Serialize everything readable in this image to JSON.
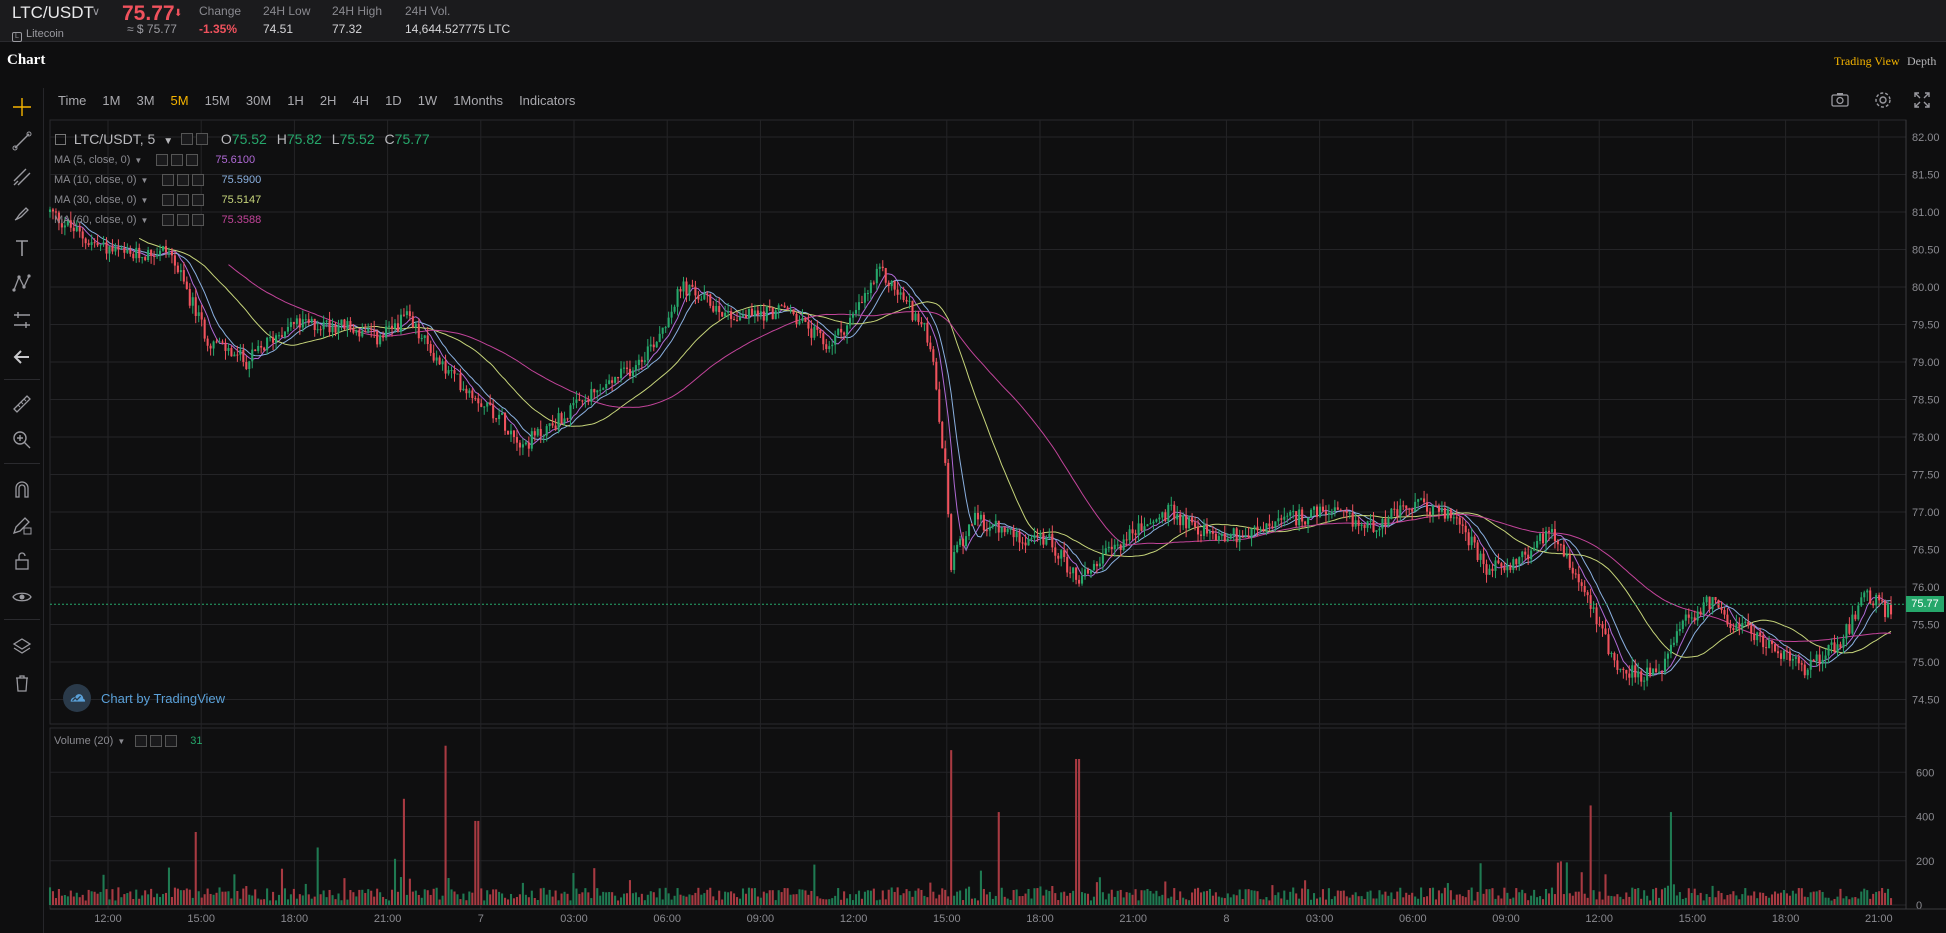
{
  "ticker": {
    "pair": "LTC/USDT",
    "coin_name": "Litecoin",
    "last_price": "75.77",
    "last_price_usd": "≈ $ 75.77",
    "stats": [
      {
        "label": "Change",
        "value": "-1.35%"
      },
      {
        "label": "24H Low",
        "value": "74.51"
      },
      {
        "label": "24H High",
        "value": "77.32"
      },
      {
        "label": "24H Vol.",
        "value": "14,644.527775 LTC"
      }
    ]
  },
  "header": {
    "title": "Chart",
    "views": [
      "Trading View",
      "Depth"
    ],
    "active_view": "Trading View"
  },
  "intervals": [
    "Time",
    "1M",
    "3M",
    "5M",
    "15M",
    "30M",
    "1H",
    "2H",
    "4H",
    "1D",
    "1W",
    "1Months",
    "Indicators"
  ],
  "active_interval": "5M",
  "toolbar_right_icons": [
    "camera-icon",
    "gear-icon",
    "fullscreen-icon"
  ],
  "left_tools": [
    "crosshair-icon",
    "trendline-icon",
    "fib-icon",
    "brush-icon",
    "text-icon",
    "pattern-icon",
    "measure-icon",
    "arrow-left-icon",
    "ruler-icon",
    "zoom-in-icon",
    "magnet-icon",
    "pencil-lock-icon",
    "unlock-icon",
    "eye-icon",
    "layers-icon",
    "trash-icon"
  ],
  "legend": {
    "symbol": "LTC/USDT, 5",
    "open": "75.52",
    "high": "75.82",
    "low": "75.52",
    "close": "75.77",
    "o_label": "O",
    "h_label": "H",
    "l_label": "L",
    "c_label": "C"
  },
  "moving_averages": [
    {
      "label": "MA (5, close, 0)",
      "value": "75.6100",
      "color": "#b06ad6"
    },
    {
      "label": "MA (10, close, 0)",
      "value": "75.5900",
      "color": "#8ab0e0"
    },
    {
      "label": "MA (30, close, 0)",
      "value": "75.5147",
      "color": "#c6d47a"
    },
    {
      "label": "MA (60, close, 0)",
      "value": "75.3588",
      "color": "#c2449a"
    }
  ],
  "volume_indicator": {
    "label": "Volume (20)",
    "value": "31"
  },
  "watermark": "Chart by TradingView",
  "colors": {
    "up": "#26a76b",
    "down": "#f0525d",
    "accent": "#f5b400",
    "background": "#0e0e0f",
    "grid": "#242427"
  },
  "chart_data": {
    "type": "candlestick",
    "title": "LTC/USDT, 5",
    "price_axis": {
      "ticks": [
        "82.00",
        "81.50",
        "81.00",
        "80.50",
        "80.00",
        "79.50",
        "79.00",
        "78.50",
        "78.00",
        "77.50",
        "77.00",
        "76.50",
        "76.00",
        "75.50",
        "75.00",
        "74.50"
      ],
      "range": [
        74.2,
        82.2
      ]
    },
    "volume_axis": {
      "ticks": [
        "600",
        "400",
        "200",
        "0"
      ],
      "range": [
        0,
        800
      ]
    },
    "time_axis": {
      "ticks": [
        "12:00",
        "15:00",
        "18:00",
        "21:00",
        "7",
        "03:00",
        "06:00",
        "09:00",
        "12:00",
        "15:00",
        "18:00",
        "21:00",
        "8",
        "03:00",
        "06:00",
        "09:00",
        "12:00",
        "15:00",
        "18:00",
        "21:00"
      ]
    },
    "current_price": "75.77",
    "close_trajectory": [
      [
        0,
        81.0
      ],
      [
        1.5,
        80.6
      ],
      [
        3,
        80.4
      ],
      [
        4.5,
        80.5
      ],
      [
        6,
        79.3
      ],
      [
        7.5,
        79.0
      ],
      [
        9,
        79.5
      ],
      [
        11,
        79.5
      ],
      [
        12.5,
        79.3
      ],
      [
        13.5,
        79.6
      ],
      [
        15,
        78.9
      ],
      [
        17,
        78.3
      ],
      [
        18,
        77.9
      ],
      [
        20,
        78.4
      ],
      [
        22,
        78.9
      ],
      [
        23,
        79.3
      ],
      [
        24,
        80.0
      ],
      [
        26,
        79.6
      ],
      [
        28,
        79.7
      ],
      [
        29.5,
        79.2
      ],
      [
        30.5,
        79.6
      ],
      [
        31.5,
        80.2
      ],
      [
        32.5,
        79.8
      ],
      [
        33.4,
        79.3
      ],
      [
        34,
        77.5
      ],
      [
        34.2,
        76.3
      ],
      [
        35,
        76.9
      ],
      [
        36.5,
        76.7
      ],
      [
        38,
        76.6
      ],
      [
        39,
        76.1
      ],
      [
        41,
        76.7
      ],
      [
        42.5,
        77.0
      ],
      [
        44,
        76.7
      ],
      [
        45.5,
        76.7
      ],
      [
        47,
        76.9
      ],
      [
        48.5,
        77.0
      ],
      [
        50,
        76.8
      ],
      [
        52,
        77.1
      ],
      [
        53.5,
        76.9
      ],
      [
        54.5,
        76.2
      ],
      [
        56,
        76.4
      ],
      [
        57,
        76.8
      ],
      [
        58.5,
        75.8
      ],
      [
        59.5,
        74.9
      ],
      [
        61,
        74.8
      ],
      [
        62,
        75.5
      ],
      [
        63,
        75.8
      ],
      [
        64,
        75.5
      ],
      [
        65,
        75.3
      ],
      [
        66.5,
        74.9
      ],
      [
        68,
        75.3
      ],
      [
        69,
        75.9
      ],
      [
        70,
        75.6
      ]
    ],
    "volume_spikes": [
      {
        "t": 15.0,
        "v": 720
      },
      {
        "t": 16.2,
        "v": 380
      },
      {
        "t": 34.2,
        "v": 700
      },
      {
        "t": 36.0,
        "v": 420
      },
      {
        "t": 39.0,
        "v": 660
      },
      {
        "t": 58.5,
        "v": 450
      },
      {
        "t": 61.5,
        "v": 420
      },
      {
        "t": 5.5,
        "v": 330
      },
      {
        "t": 10.2,
        "v": 260
      },
      {
        "t": 13.4,
        "v": 480
      }
    ]
  }
}
